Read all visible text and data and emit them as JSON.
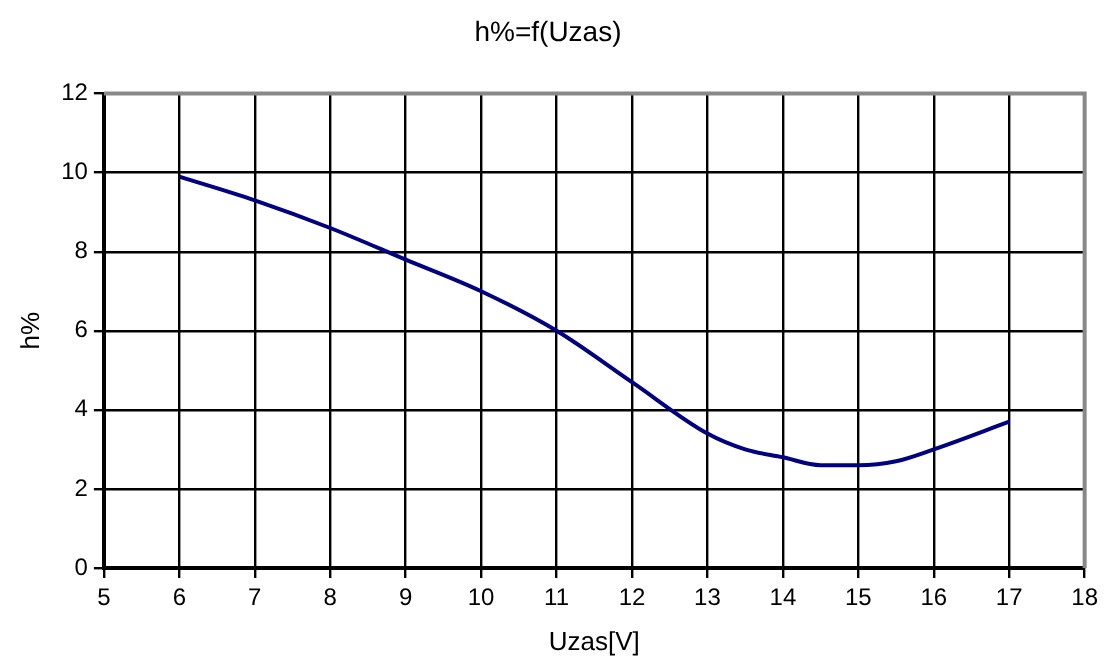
{
  "chart_data": {
    "type": "line",
    "title": "h%=f(Uzas)",
    "xlabel": "Uzas[V]",
    "ylabel": "h%",
    "x": [
      6,
      7,
      8,
      9,
      10,
      11,
      12,
      13,
      13.5,
      14,
      14.5,
      15,
      15.5,
      16,
      17
    ],
    "series": [
      {
        "color": "#000080",
        "values": [
          9.9,
          9.3,
          8.6,
          7.8,
          7.0,
          6.0,
          4.7,
          3.4,
          3.0,
          2.8,
          2.6,
          2.6,
          2.7,
          3.0,
          3.7
        ]
      }
    ],
    "xlim": [
      5,
      18
    ],
    "xticks": [
      5,
      6,
      7,
      8,
      9,
      10,
      11,
      12,
      13,
      14,
      15,
      16,
      17,
      18
    ],
    "ylim": [
      0,
      12
    ],
    "yticks": [
      0,
      2,
      4,
      6,
      8,
      10,
      12
    ],
    "grid": true,
    "legend": false,
    "marker": "none",
    "line_style": "solid"
  }
}
